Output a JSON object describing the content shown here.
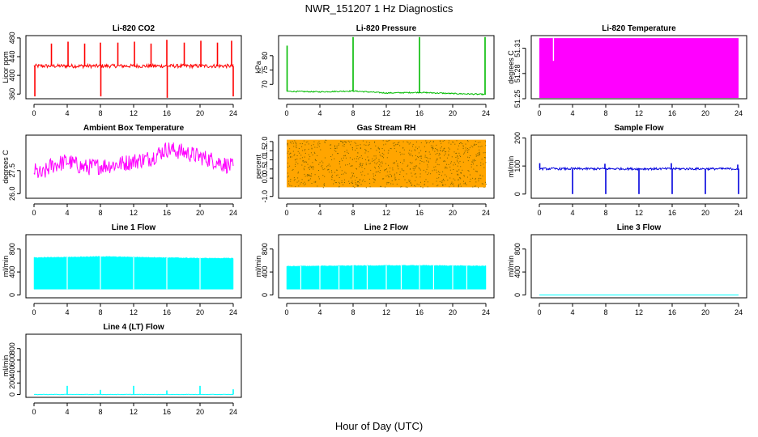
{
  "figure": {
    "title": "NWR_151207  1 Hz Diagnostics",
    "xlabel": "Hour of Day (UTC)"
  },
  "chart_data": [
    {
      "type": "line",
      "title": "Li-820 CO2",
      "ylabel": "Licor ppm",
      "color": "#ff0000",
      "x_ticks": [
        0,
        4,
        8,
        12,
        16,
        20,
        24
      ],
      "y_ticks": [
        360,
        400,
        440,
        480
      ],
      "xlim": [
        0,
        24
      ],
      "ylim": [
        350,
        485
      ],
      "baseline": 420,
      "noise": 4,
      "spikes": [
        {
          "x": 0.1,
          "y": 355
        },
        {
          "x": 2.1,
          "y": 468
        },
        {
          "x": 4.1,
          "y": 472
        },
        {
          "x": 6.1,
          "y": 468
        },
        {
          "x": 8.0,
          "y": 470
        },
        {
          "x": 8.05,
          "y": 355
        },
        {
          "x": 10.1,
          "y": 470
        },
        {
          "x": 12.1,
          "y": 472
        },
        {
          "x": 14.1,
          "y": 468
        },
        {
          "x": 16.0,
          "y": 476
        },
        {
          "x": 16.05,
          "y": 352
        },
        {
          "x": 18.1,
          "y": 470
        },
        {
          "x": 20.1,
          "y": 474
        },
        {
          "x": 22.1,
          "y": 470
        },
        {
          "x": 23.8,
          "y": 474
        },
        {
          "x": 24.0,
          "y": 355
        }
      ]
    },
    {
      "type": "line",
      "title": "Li-820 Pressure",
      "ylabel": "kPa",
      "color": "#00bb00",
      "x_ticks": [
        0,
        4,
        8,
        12,
        16,
        20,
        24
      ],
      "y_ticks": [
        70,
        75,
        80
      ],
      "xlim": [
        0,
        24
      ],
      "ylim": [
        65,
        87
      ],
      "trend": [
        [
          0,
          67.6
        ],
        [
          4,
          67.4
        ],
        [
          8,
          67.7
        ],
        [
          12,
          67.0
        ],
        [
          16,
          67.2
        ],
        [
          20,
          66.8
        ],
        [
          24,
          66.5
        ]
      ],
      "noise": 0.2,
      "spikes": [
        {
          "x": 0.05,
          "y": 83.5
        },
        {
          "x": 8.0,
          "y": 86.5
        },
        {
          "x": 16.0,
          "y": 86.5
        },
        {
          "x": 23.9,
          "y": 86.5
        }
      ]
    },
    {
      "type": "area",
      "title": "Li-820 Temperature",
      "ylabel": "degrees C",
      "color": "#ff00ff",
      "x_ticks": [
        0,
        4,
        8,
        12,
        16,
        20,
        24
      ],
      "y_ticks": [
        51.25,
        51.28,
        51.31
      ],
      "xlim": [
        0,
        24
      ],
      "ylim": [
        51.25,
        51.325
      ],
      "band": [
        51.25,
        51.322
      ],
      "dip": {
        "x": 1.7,
        "y": 51.295
      }
    },
    {
      "type": "line",
      "title": "Ambient Box Temperature",
      "ylabel": "degrees C",
      "color": "#ff00ff",
      "x_ticks": [
        0,
        4,
        8,
        12,
        16,
        20,
        24
      ],
      "y_ticks": [
        26.0,
        27.5
      ],
      "xlim": [
        0,
        24
      ],
      "ylim": [
        25.7,
        29.8
      ],
      "trend": [
        [
          0,
          27.5
        ],
        [
          1,
          27.2
        ],
        [
          2,
          27.8
        ],
        [
          4,
          28.1
        ],
        [
          6,
          27.7
        ],
        [
          8,
          27.8
        ],
        [
          10,
          27.9
        ],
        [
          12,
          28.1
        ],
        [
          14,
          28.3
        ],
        [
          16,
          28.9
        ],
        [
          18,
          28.7
        ],
        [
          20,
          28.4
        ],
        [
          22,
          28.1
        ],
        [
          24,
          27.7
        ]
      ],
      "noise": 0.55
    },
    {
      "type": "scatter",
      "title": "Gas Stream RH",
      "ylabel": "percent",
      "color": "#ffa500",
      "dot_color": "#7a6000",
      "x_ticks": [
        0,
        4,
        8,
        12,
        16,
        20,
        24
      ],
      "y_ticks": [
        -1.0,
        0.0,
        0.5,
        1.0,
        1.5,
        2.0
      ],
      "xlim": [
        0,
        24
      ],
      "ylim": [
        -1.1,
        2.35
      ],
      "band": [
        -0.5,
        2.1
      ]
    },
    {
      "type": "line",
      "title": "Sample Flow",
      "ylabel": "ml/min",
      "color": "#0000dd",
      "x_ticks": [
        0,
        4,
        8,
        12,
        16,
        20,
        24
      ],
      "y_ticks": [
        0,
        100,
        200
      ],
      "xlim": [
        0,
        24
      ],
      "ylim": [
        -15,
        210
      ],
      "baseline": 90,
      "noise": 4,
      "spikes": [
        {
          "x": 4.0,
          "y": 0
        },
        {
          "x": 8.0,
          "y": 0
        },
        {
          "x": 12.0,
          "y": 0
        },
        {
          "x": 16.0,
          "y": 0
        },
        {
          "x": 20.0,
          "y": 0
        },
        {
          "x": 24.0,
          "y": 0
        },
        {
          "x": 0.05,
          "y": 110
        },
        {
          "x": 7.9,
          "y": 108
        },
        {
          "x": 15.9,
          "y": 110
        },
        {
          "x": 23.9,
          "y": 105
        }
      ]
    },
    {
      "type": "area",
      "title": "Line 1 Flow",
      "ylabel": "ml/min",
      "color": "#00ffff",
      "x_ticks": [
        0,
        4,
        8,
        12,
        16,
        20,
        24
      ],
      "y_ticks": [
        0,
        400,
        800
      ],
      "xlim": [
        0,
        24
      ],
      "ylim": [
        -50,
        1050
      ],
      "band_trend": [
        [
          0,
          650
        ],
        [
          8,
          670
        ],
        [
          12,
          660
        ],
        [
          16,
          650
        ],
        [
          20,
          640
        ],
        [
          24,
          640
        ]
      ],
      "band_low": 100,
      "gaps": [
        4,
        8,
        12,
        16,
        20
      ]
    },
    {
      "type": "area",
      "title": "Line 2 Flow",
      "ylabel": "ml/min",
      "color": "#00ffff",
      "x_ticks": [
        0,
        4,
        8,
        12,
        16,
        20,
        24
      ],
      "y_ticks": [
        0,
        400,
        800
      ],
      "xlim": [
        0,
        24
      ],
      "ylim": [
        -50,
        1050
      ],
      "band_trend": [
        [
          0,
          500
        ],
        [
          8,
          510
        ],
        [
          16,
          515
        ],
        [
          24,
          505
        ]
      ],
      "band_low": 100,
      "gaps": [
        1.7,
        4,
        6.3,
        8,
        9.7,
        12,
        13.8,
        16,
        17.7,
        20,
        21.7
      ]
    },
    {
      "type": "line",
      "title": "Line 3 Flow",
      "ylabel": "ml/min",
      "color": "#00ffff",
      "x_ticks": [
        0,
        4,
        8,
        12,
        16,
        20,
        24
      ],
      "y_ticks": [
        0,
        400,
        800
      ],
      "xlim": [
        0,
        24
      ],
      "ylim": [
        -50,
        1050
      ],
      "baseline": 0,
      "noise": 0
    },
    {
      "type": "line",
      "title": "Line 4 (LT) Flow",
      "ylabel": "ml/min",
      "color": "#00ffff",
      "x_ticks": [
        0,
        4,
        8,
        12,
        16,
        20,
        24
      ],
      "y_ticks": [
        0,
        200,
        400,
        600,
        800
      ],
      "xlim": [
        0,
        24
      ],
      "ylim": [
        -50,
        1050
      ],
      "baseline": 0,
      "noise": 3,
      "spikes": [
        {
          "x": 4.0,
          "y": 150
        },
        {
          "x": 8.0,
          "y": 80
        },
        {
          "x": 12.0,
          "y": 150
        },
        {
          "x": 16.0,
          "y": 70
        },
        {
          "x": 20.0,
          "y": 150
        },
        {
          "x": 24.0,
          "y": 90
        }
      ]
    }
  ]
}
